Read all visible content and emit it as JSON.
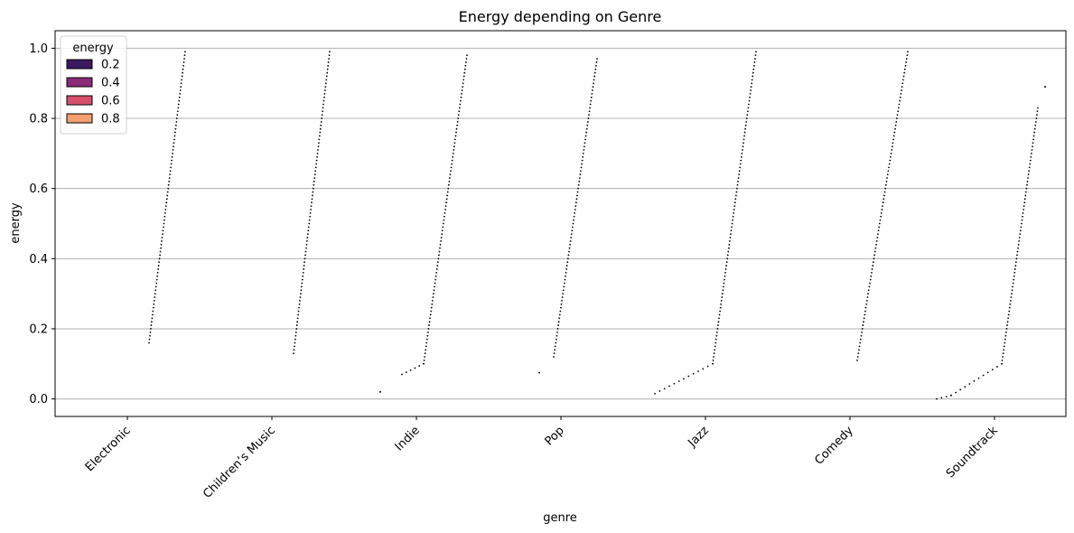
{
  "chart_data": {
    "type": "strip",
    "title": "Energy depending on Genre",
    "xlabel": "genre",
    "ylabel": "energy",
    "categories": [
      "Electronic",
      "Children’s Music",
      "Indie",
      "Pop",
      "Jazz",
      "Comedy",
      "Soundtrack"
    ],
    "ylim": [
      -0.05,
      1.05
    ],
    "yticks": [
      "0.0",
      "0.2",
      "0.4",
      "0.6",
      "0.8",
      "1.0"
    ],
    "ytick_values": [
      0.0,
      0.2,
      0.4,
      0.6,
      0.8,
      1.0
    ],
    "grid": "horizontal",
    "legend": {
      "title": "energy",
      "placement": "top-left",
      "entries": [
        {
          "label": "0.2",
          "color": "#3b1a62"
        },
        {
          "label": "0.4",
          "color": "#8a2a78"
        },
        {
          "label": "0.6",
          "color": "#d5506a"
        },
        {
          "label": "0.8",
          "color": "#f3a06e"
        }
      ]
    },
    "series": [
      {
        "genre": "Electronic",
        "segments": [
          {
            "x0": 0.15,
            "y0": 0.16,
            "x1": 0.4,
            "y1": 0.99
          }
        ]
      },
      {
        "genre": "Children’s Music",
        "segments": [
          {
            "x0": 0.15,
            "y0": 0.13,
            "x1": 0.4,
            "y1": 0.99
          }
        ]
      },
      {
        "genre": "Indie",
        "segments": [
          {
            "x0": -0.25,
            "y0": 0.02,
            "x1": -0.25,
            "y1": 0.02
          },
          {
            "x0": -0.1,
            "y0": 0.07,
            "x1": 0.05,
            "y1": 0.1
          },
          {
            "x0": 0.05,
            "y0": 0.1,
            "x1": 0.35,
            "y1": 0.98
          }
        ]
      },
      {
        "genre": "Pop",
        "segments": [
          {
            "x0": -0.15,
            "y0": 0.075,
            "x1": -0.15,
            "y1": 0.075
          },
          {
            "x0": -0.05,
            "y0": 0.12,
            "x1": 0.25,
            "y1": 0.97
          }
        ]
      },
      {
        "genre": "Jazz",
        "segments": [
          {
            "x0": -0.35,
            "y0": 0.015,
            "x1": 0.05,
            "y1": 0.1
          },
          {
            "x0": 0.05,
            "y0": 0.1,
            "x1": 0.35,
            "y1": 0.99
          }
        ]
      },
      {
        "genre": "Comedy",
        "segments": [
          {
            "x0": 0.05,
            "y0": 0.11,
            "x1": 0.4,
            "y1": 0.99
          }
        ]
      },
      {
        "genre": "Soundtrack",
        "segments": [
          {
            "x0": -0.4,
            "y0": 0.0,
            "x1": -0.3,
            "y1": 0.01
          },
          {
            "x0": -0.3,
            "y0": 0.01,
            "x1": 0.05,
            "y1": 0.1
          },
          {
            "x0": 0.05,
            "y0": 0.1,
            "x1": 0.3,
            "y1": 0.83
          },
          {
            "x0": 0.35,
            "y0": 0.89,
            "x1": 0.35,
            "y1": 0.89
          }
        ]
      }
    ]
  }
}
